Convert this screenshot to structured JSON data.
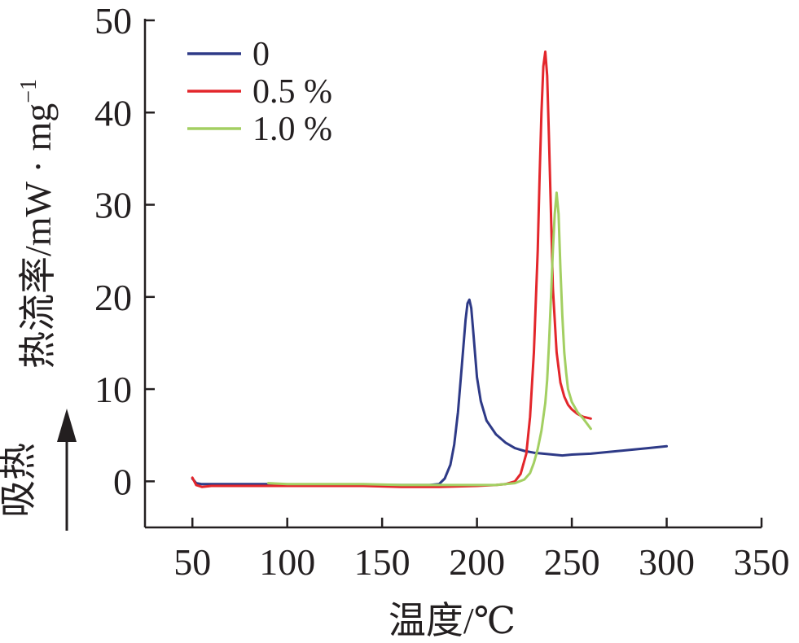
{
  "chart_data": {
    "type": "line",
    "xlabel": "温度/℃",
    "ylabel": "热流率/mW·mg⁻¹",
    "ylabel_parts": {
      "main": "热流率/mW · mg",
      "superscript": "−1"
    },
    "endotherm_label": "吸热",
    "xlim": [
      25,
      350
    ],
    "ylim": [
      -5,
      50
    ],
    "x_ticks": [
      50,
      100,
      150,
      200,
      250,
      300,
      350
    ],
    "y_ticks": [
      0,
      10,
      20,
      30,
      40,
      50
    ],
    "x_tick_labels": [
      "50",
      "100",
      "150",
      "200",
      "250",
      "300",
      "350"
    ],
    "y_tick_labels": [
      "0",
      "10",
      "20",
      "30",
      "40",
      "50"
    ],
    "legend_position": "top-left",
    "grid": false,
    "series": [
      {
        "name": "0",
        "color": "#2e3a87",
        "x": [
          50,
          52,
          55,
          60,
          70,
          80,
          90,
          100,
          120,
          140,
          160,
          175,
          180,
          183,
          186,
          188,
          190,
          192,
          194,
          195,
          196,
          197,
          198,
          199,
          200,
          202,
          205,
          210,
          215,
          220,
          225,
          230,
          235,
          240,
          245,
          250,
          260,
          270,
          280,
          290,
          300
        ],
        "y": [
          0.3,
          -0.2,
          -0.3,
          -0.3,
          -0.3,
          -0.3,
          -0.3,
          -0.4,
          -0.4,
          -0.4,
          -0.4,
          -0.4,
          -0.3,
          0.3,
          1.8,
          4.0,
          7.5,
          12.5,
          17.5,
          19.3,
          19.7,
          18.8,
          16.3,
          13.8,
          11.3,
          8.7,
          6.6,
          5.1,
          4.2,
          3.6,
          3.3,
          3.1,
          3.0,
          2.9,
          2.8,
          2.9,
          3.0,
          3.2,
          3.4,
          3.6,
          3.8
        ]
      },
      {
        "name": "0.5 %",
        "color": "#e3262b",
        "x": [
          50,
          52,
          55,
          60,
          80,
          100,
          120,
          140,
          160,
          180,
          200,
          210,
          215,
          220,
          223,
          226,
          228,
          230,
          232,
          233,
          234,
          235,
          236,
          237,
          238,
          239,
          240,
          242,
          244,
          246,
          248,
          250,
          253,
          256,
          260
        ],
        "y": [
          0.4,
          -0.4,
          -0.6,
          -0.5,
          -0.5,
          -0.5,
          -0.5,
          -0.5,
          -0.6,
          -0.6,
          -0.5,
          -0.4,
          -0.3,
          0.0,
          0.8,
          3.0,
          7.0,
          14.0,
          25.0,
          33.0,
          40.0,
          45.0,
          46.6,
          44.0,
          37.0,
          29.0,
          21.0,
          14.0,
          10.7,
          9.2,
          8.3,
          7.8,
          7.3,
          7.0,
          6.8
        ]
      },
      {
        "name": "1.0 %",
        "color": "#a3cf62",
        "x": [
          90,
          100,
          120,
          140,
          160,
          180,
          200,
          210,
          215,
          220,
          225,
          228,
          230,
          232,
          234,
          236,
          237,
          238,
          239,
          240,
          241,
          242,
          243,
          244,
          245,
          246,
          247,
          248,
          250,
          253,
          256,
          260
        ],
        "y": [
          -0.2,
          -0.3,
          -0.3,
          -0.3,
          -0.4,
          -0.4,
          -0.4,
          -0.4,
          -0.3,
          -0.2,
          0.2,
          0.9,
          2.0,
          3.5,
          5.5,
          8.5,
          11.0,
          15.0,
          20.0,
          25.0,
          29.0,
          31.3,
          29.0,
          23.0,
          18.0,
          14.0,
          11.8,
          10.0,
          8.6,
          7.5,
          6.8,
          5.7
        ]
      }
    ]
  }
}
